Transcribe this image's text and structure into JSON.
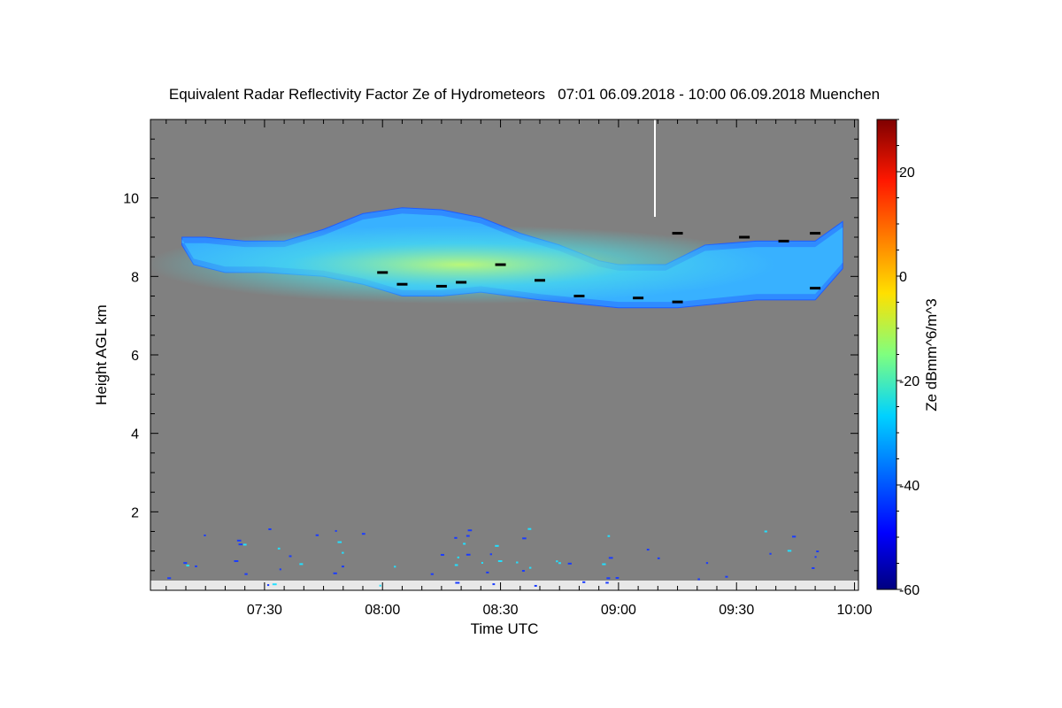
{
  "chart_data": {
    "type": "heatmap",
    "title": "Equivalent Radar Reflectivity Factor Ze of Hydrometeors   07:01 06.09.2018 - 10:00 06.09.2018 Muenchen",
    "xlabel": "Time UTC",
    "ylabel": "Height AGL km",
    "colorbar_label": "Ze dBmm^6/m^3",
    "x_range_minutes": [
      421,
      601
    ],
    "y_range_km": [
      0,
      12
    ],
    "x_ticks": [
      {
        "label": "07:30",
        "minutes": 450
      },
      {
        "label": "08:00",
        "minutes": 480
      },
      {
        "label": "08:30",
        "minutes": 510
      },
      {
        "label": "09:00",
        "minutes": 540
      },
      {
        "label": "09:30",
        "minutes": 570
      },
      {
        "label": "10:00",
        "minutes": 600
      }
    ],
    "y_ticks": [
      2,
      4,
      6,
      8,
      10
    ],
    "colorbar_range": [
      -60,
      30
    ],
    "colorbar_ticks": [
      20,
      0,
      -20,
      -40,
      -60
    ],
    "background_color": "#808080",
    "cloud_layer": {
      "start_minutes": 429,
      "end_minutes": 597,
      "base_km": [
        [
          429,
          8.8
        ],
        [
          432,
          8.3
        ],
        [
          440,
          8.1
        ],
        [
          450,
          8.1
        ],
        [
          465,
          8.0
        ],
        [
          475,
          7.8
        ],
        [
          485,
          7.5
        ],
        [
          495,
          7.5
        ],
        [
          505,
          7.6
        ],
        [
          520,
          7.4
        ],
        [
          530,
          7.3
        ],
        [
          540,
          7.2
        ],
        [
          555,
          7.2
        ],
        [
          565,
          7.3
        ],
        [
          575,
          7.4
        ],
        [
          590,
          7.4
        ],
        [
          597,
          8.2
        ]
      ],
      "top_km": [
        [
          429,
          9.0
        ],
        [
          435,
          9.0
        ],
        [
          445,
          8.9
        ],
        [
          455,
          8.9
        ],
        [
          465,
          9.2
        ],
        [
          475,
          9.6
        ],
        [
          485,
          9.75
        ],
        [
          495,
          9.7
        ],
        [
          505,
          9.5
        ],
        [
          515,
          9.1
        ],
        [
          525,
          8.8
        ],
        [
          535,
          8.4
        ],
        [
          540,
          8.3
        ],
        [
          552,
          8.3
        ],
        [
          562,
          8.8
        ],
        [
          575,
          8.9
        ],
        [
          590,
          8.9
        ],
        [
          597,
          9.4
        ]
      ],
      "core_ze_dbz": -10,
      "edge_ze_dbz": -40
    },
    "melting_markers_km": [
      [
        480,
        8.1
      ],
      [
        485,
        7.8
      ],
      [
        495,
        7.75
      ],
      [
        500,
        7.85
      ],
      [
        510,
        8.3
      ],
      [
        520,
        7.9
      ],
      [
        530,
        7.5
      ],
      [
        545,
        7.45
      ],
      [
        555,
        7.35
      ],
      [
        555,
        9.1
      ],
      [
        572,
        9.0
      ],
      [
        582,
        8.9
      ],
      [
        590,
        9.1
      ],
      [
        590,
        7.7
      ]
    ]
  }
}
